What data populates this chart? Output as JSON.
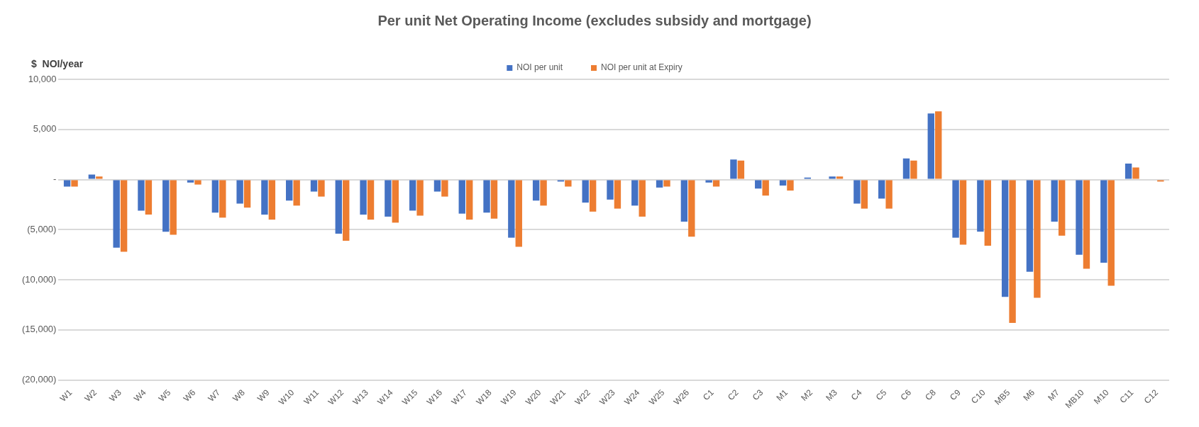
{
  "chart_data": {
    "type": "bar",
    "title": "Per unit Net Operating Income (excludes subsidy and mortgage)",
    "ylabel": "$  NOI/year",
    "categories": [
      "W1",
      "W2",
      "W3",
      "W4",
      "W5",
      "W6",
      "W7",
      "W8",
      "W9",
      "W10",
      "W11",
      "W12",
      "W13",
      "W14",
      "W15",
      "W16",
      "W17",
      "W18",
      "W19",
      "W20",
      "W21",
      "W22",
      "W23",
      "W24",
      "W25",
      "W26",
      "C1",
      "C2",
      "C3",
      "M1",
      "M2",
      "M3",
      "C4",
      "C5",
      "C6",
      "C8",
      "C9",
      "C10",
      "MB5",
      "M6",
      "M7",
      "MB10",
      "M10",
      "C11",
      "C12"
    ],
    "series": [
      {
        "name": "NOI per unit",
        "color": "#4472c4",
        "values": [
          -700,
          500,
          -6800,
          -3100,
          -5200,
          -300,
          -3300,
          -2400,
          -3500,
          -2100,
          -1200,
          -5400,
          -3500,
          -3700,
          -3100,
          -1200,
          -3400,
          -3300,
          -5800,
          -2100,
          -200,
          -2300,
          -2000,
          -2600,
          -800,
          -4200,
          -300,
          2000,
          -900,
          -600,
          200,
          300,
          -2400,
          -1900,
          2100,
          6600,
          -5800,
          -5200,
          -11700,
          -9200,
          -4200,
          -7500,
          -8300,
          1600,
          0
        ]
      },
      {
        "name": "NOI per unit at Expiry",
        "color": "#ed7d31",
        "values": [
          -700,
          300,
          -7200,
          -3500,
          -5500,
          -500,
          -3800,
          -2800,
          -4000,
          -2600,
          -1700,
          -6100,
          -4000,
          -4300,
          -3600,
          -1700,
          -4000,
          -3900,
          -6700,
          -2600,
          -700,
          -3200,
          -2900,
          -3700,
          -700,
          -5700,
          -700,
          1900,
          -1600,
          -1100,
          null,
          300,
          -2900,
          -2900,
          1900,
          6800,
          -6500,
          -6600,
          -14300,
          -11800,
          -5600,
          -8900,
          -10600,
          1200,
          -200
        ]
      }
    ],
    "ylim": [
      -20000,
      10000
    ],
    "yticks": [
      {
        "value": -20000,
        "label": "(20,000)"
      },
      {
        "value": -15000,
        "label": "(15,000)"
      },
      {
        "value": -10000,
        "label": "(10,000)"
      },
      {
        "value": -5000,
        "label": "(5,000)"
      },
      {
        "value": 0,
        "label": "-"
      },
      {
        "value": 5000,
        "label": "5,000"
      },
      {
        "value": 10000,
        "label": "10,000"
      }
    ],
    "grid": "y",
    "legend": "top"
  }
}
